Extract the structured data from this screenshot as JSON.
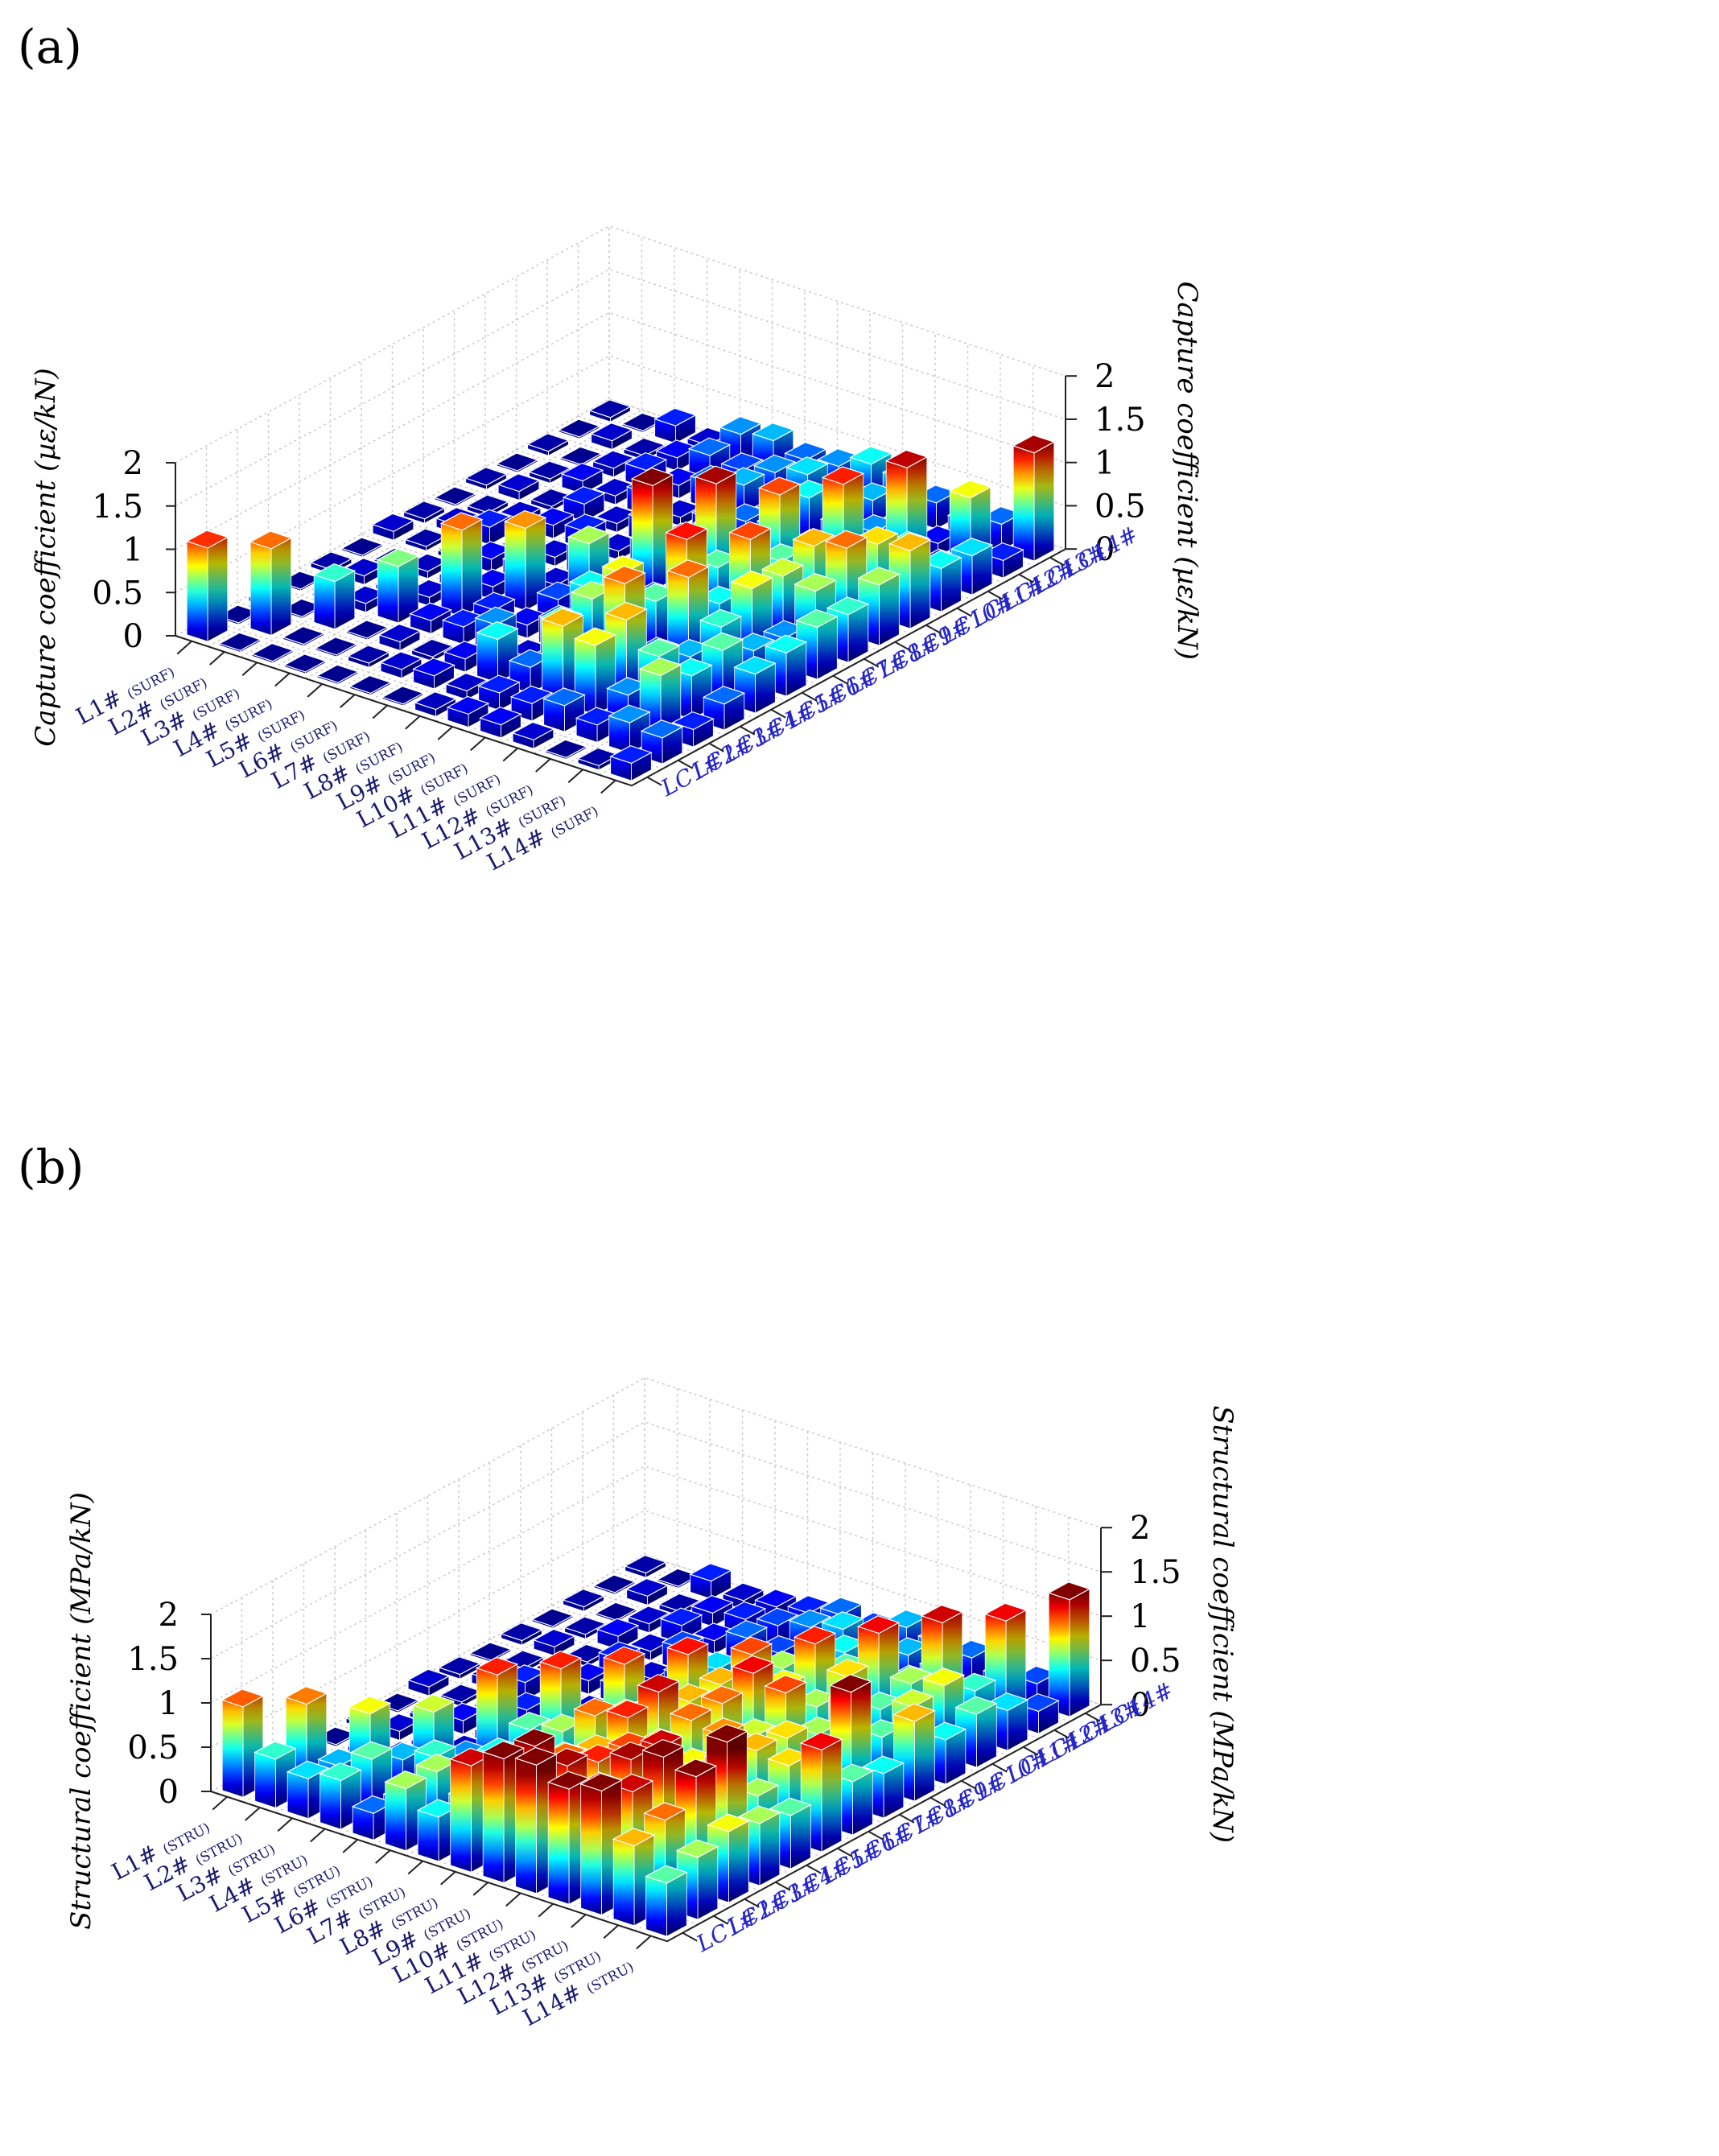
{
  "chart_data": [
    {
      "type": "bar3d",
      "panel_label": "(a)",
      "zlabel": "Capture coefficient (µε/kN)",
      "zlabel_right": "Capture coefficient (µε/kN)",
      "zlim": [
        0,
        2
      ],
      "zticks": [
        "0",
        "0.5",
        "1",
        "1.5",
        "2"
      ],
      "x_labels": [
        "L1#",
        "L2#",
        "L3#",
        "L4#",
        "L5#",
        "L6#",
        "L7#",
        "L8#",
        "L9#",
        "L10#",
        "L11#",
        "L12#",
        "L13#",
        "L14#"
      ],
      "x_suffix": "(SURF)",
      "y_labels": [
        "LC1#",
        "LC2#",
        "LC3#",
        "LC4#",
        "LC5#",
        "LC6#",
        "LC7#",
        "LC8#",
        "LC9#",
        "LC10#",
        "LC11#",
        "LC12#",
        "LC13#",
        "LC14#"
      ],
      "values": [
        [
          1.08,
          0.02,
          0.02,
          0.02,
          0.02,
          0.02,
          0.02,
          0.08,
          0.15,
          0.15,
          0.1,
          0.02,
          0.05,
          0.2
        ],
        [
          0.02,
          1.0,
          0.02,
          0.02,
          0.05,
          0.1,
          0.15,
          0.1,
          0.2,
          0.2,
          0.3,
          0.2,
          0.35,
          0.3
        ],
        [
          0.05,
          0.02,
          0.55,
          0.02,
          0.1,
          0.05,
          0.15,
          0.5,
          0.3,
          0.9,
          0.8,
          0.35,
          0.7,
          0.2
        ],
        [
          0.02,
          0.02,
          0.1,
          0.65,
          0.15,
          0.2,
          0.35,
          0.1,
          0.6,
          0.45,
          0.9,
          0.6,
          0.5,
          0.3
        ],
        [
          0.05,
          0.1,
          0.05,
          0.1,
          1.0,
          0.2,
          0.15,
          0.3,
          0.7,
          1.0,
          0.3,
          0.4,
          0.6,
          0.45
        ],
        [
          0.02,
          0.02,
          0.08,
          0.1,
          0.15,
          0.95,
          0.25,
          0.5,
          0.8,
          0.6,
          1.0,
          0.55,
          0.4,
          0.5
        ],
        [
          0.1,
          0.05,
          0.05,
          0.15,
          0.2,
          0.1,
          0.7,
          0.2,
          0.3,
          1.12,
          0.5,
          0.8,
          0.35,
          0.6
        ],
        [
          0.05,
          0.1,
          0.2,
          0.05,
          0.1,
          0.3,
          0.15,
          1.3,
          0.2,
          0.6,
          1.05,
          0.75,
          0.7,
          0.55
        ],
        [
          0.02,
          0.05,
          0.1,
          0.15,
          0.2,
          0.1,
          0.3,
          0.2,
          1.25,
          0.35,
          0.6,
          0.9,
          1.0,
          0.7
        ],
        [
          0.05,
          0.1,
          0.05,
          0.2,
          0.1,
          0.25,
          0.15,
          0.4,
          0.2,
          1.05,
          0.3,
          0.65,
          0.85,
          0.9
        ],
        [
          0.02,
          0.05,
          0.15,
          0.1,
          0.25,
          0.1,
          0.2,
          0.3,
          0.35,
          0.25,
          1.1,
          0.3,
          0.6,
          0.5
        ],
        [
          0.05,
          0.02,
          0.1,
          0.2,
          0.15,
          0.3,
          0.4,
          0.2,
          0.5,
          0.3,
          0.35,
          1.22,
          0.2,
          0.45
        ],
        [
          0.02,
          0.1,
          0.05,
          0.15,
          0.3,
          0.25,
          0.35,
          0.45,
          0.3,
          0.4,
          0.25,
          0.15,
          0.8,
          0.2
        ],
        [
          0.05,
          0.02,
          0.2,
          0.1,
          0.35,
          0.4,
          0.3,
          0.35,
          0.5,
          0.45,
          0.3,
          0.2,
          0.3,
          1.25
        ]
      ]
    },
    {
      "type": "bar3d",
      "panel_label": "(b)",
      "zlabel": "Structural coefficient (MPa/kN)",
      "zlabel_right": "Structural coefficient (MPa/kN)",
      "zlim": [
        0,
        2
      ],
      "zticks": [
        "0",
        "0.5",
        "1",
        "1.5",
        "2"
      ],
      "x_labels": [
        "L1#",
        "L2#",
        "L3#",
        "L4#",
        "L5#",
        "L6#",
        "L7#",
        "L8#",
        "L9#",
        "L10#",
        "L11#",
        "L12#",
        "L13#",
        "L14#"
      ],
      "x_suffix": "(STRU)",
      "y_labels": [
        "LC1#",
        "LC2#",
        "LC3#",
        "LC4#",
        "LC5#",
        "LC6#",
        "LC7#",
        "LC8#",
        "LC9#",
        "LC10#",
        "LC11#",
        "LC12#",
        "LC13#",
        "LC14#"
      ],
      "values": [
        [
          1.02,
          0.55,
          0.45,
          0.55,
          0.3,
          0.7,
          0.5,
          1.2,
          1.4,
          1.45,
          1.3,
          1.4,
          0.9,
          0.6
        ],
        [
          0.02,
          0.98,
          0.4,
          0.6,
          0.25,
          0.7,
          0.5,
          0.8,
          1.35,
          1.25,
          1.1,
          1.2,
          1.0,
          0.7
        ],
        [
          0.05,
          0.02,
          0.8,
          0.4,
          0.55,
          0.45,
          0.7,
          0.6,
          1.0,
          1.1,
          1.25,
          1.4,
          1.3,
          0.8
        ],
        [
          0.02,
          0.05,
          0.1,
          0.75,
          0.35,
          0.5,
          0.6,
          0.7,
          0.9,
          1.05,
          1.2,
          0.8,
          1.5,
          0.7
        ],
        [
          0.05,
          0.1,
          0.05,
          0.1,
          1.1,
          0.6,
          0.7,
          1.0,
          1.1,
          0.9,
          0.8,
          0.95,
          0.7,
          0.6
        ],
        [
          0.02,
          0.05,
          0.15,
          0.1,
          0.2,
          1.1,
          0.5,
          0.8,
          1.2,
          1.0,
          0.95,
          0.9,
          0.85,
          1.15
        ],
        [
          0.1,
          0.05,
          0.05,
          0.2,
          0.15,
          0.3,
          1.08,
          0.7,
          0.9,
          1.0,
          0.75,
          0.85,
          0.7,
          0.6
        ],
        [
          0.05,
          0.1,
          0.2,
          0.05,
          0.1,
          0.15,
          0.3,
          1.12,
          0.9,
          1.15,
          1.05,
          0.7,
          1.3,
          0.5
        ],
        [
          0.02,
          0.05,
          0.1,
          0.15,
          0.2,
          0.1,
          0.3,
          0.4,
          1.05,
          0.8,
          0.7,
          0.85,
          0.6,
          0.9
        ],
        [
          0.05,
          0.1,
          0.05,
          0.2,
          0.1,
          0.25,
          0.45,
          0.4,
          0.7,
          1.1,
          0.85,
          0.6,
          0.75,
          0.5
        ],
        [
          0.02,
          0.05,
          0.15,
          0.1,
          0.25,
          0.1,
          0.2,
          0.3,
          0.35,
          0.6,
          1.15,
          0.7,
          0.8,
          0.6
        ],
        [
          0.05,
          0.02,
          0.1,
          0.2,
          0.15,
          0.3,
          0.25,
          0.2,
          0.5,
          0.35,
          0.4,
          1.2,
          0.55,
          0.45
        ],
        [
          0.02,
          0.1,
          0.05,
          0.15,
          0.2,
          0.25,
          0.35,
          0.45,
          0.3,
          0.4,
          0.35,
          0.2,
          1.15,
          0.25
        ],
        [
          0.05,
          0.02,
          0.2,
          0.1,
          0.15,
          0.2,
          0.3,
          0.25,
          0.4,
          0.35,
          0.3,
          0.2,
          0.25,
          1.32
        ]
      ]
    }
  ]
}
